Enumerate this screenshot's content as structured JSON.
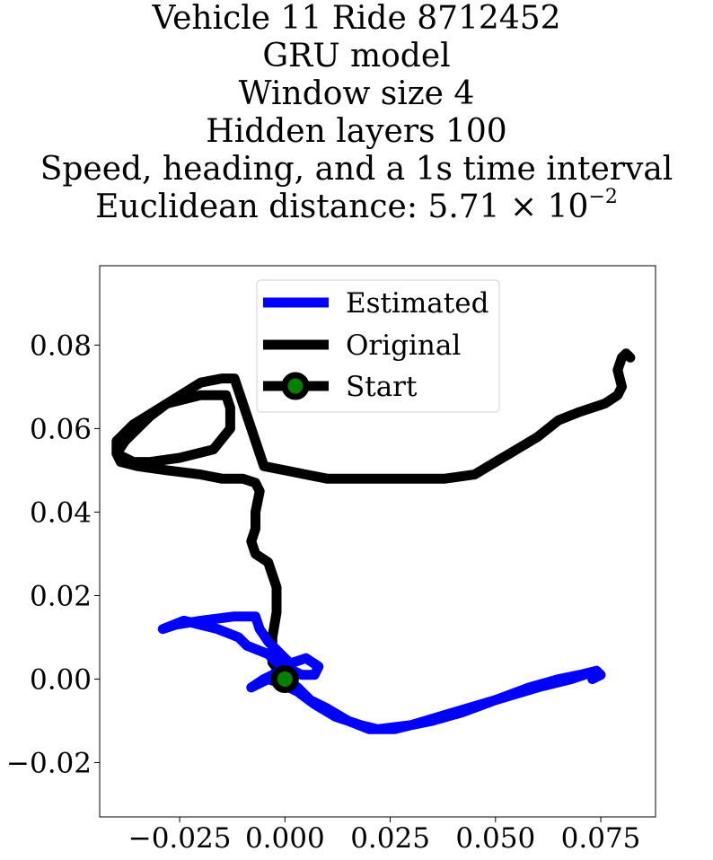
{
  "title": {
    "line1": "Vehicle 11 Ride 8712452",
    "line2": "GRU model",
    "line3": "Window size 4",
    "line4": "Hidden layers 100",
    "line5": "Speed, heading, and a 1s time interval",
    "line6_prefix": "Euclidean distance: 5.71 × 10",
    "line6_exponent": "−2"
  },
  "colors": {
    "estimated": "#0000ff",
    "original": "#000000",
    "start_marker": "#008000"
  },
  "chart_data": {
    "type": "line",
    "xlim": [
      -0.044,
      0.088
    ],
    "ylim": [
      -0.033,
      0.099
    ],
    "xticks": [
      -0.025,
      0.0,
      0.025,
      0.05,
      0.075
    ],
    "xtick_labels": [
      "−0.025",
      "0.000",
      "0.025",
      "0.050",
      "0.075"
    ],
    "yticks": [
      -0.02,
      0.0,
      0.02,
      0.04,
      0.06,
      0.08
    ],
    "ytick_labels": [
      "−0.02",
      "0.00",
      "0.02",
      "0.04",
      "0.06",
      "0.08"
    ],
    "grid": false,
    "legend_position": "top-center",
    "legend": [
      "Estimated",
      "Original",
      "Start"
    ],
    "series": [
      {
        "name": "Estimated",
        "color": "#0000ff",
        "x": [
          0.0,
          0.003,
          0.006,
          0.01,
          0.015,
          0.02,
          0.026,
          0.03,
          0.035,
          0.042,
          0.05,
          0.058,
          0.065,
          0.07,
          0.074,
          0.075,
          0.073,
          0.074,
          0.068,
          0.06,
          0.05,
          0.04,
          0.03,
          0.022,
          0.018,
          0.012,
          0.007,
          0.003,
          -0.001,
          -0.004,
          -0.008,
          -0.005,
          -0.001,
          0.002,
          0.005,
          0.008,
          0.007,
          0.004,
          0.0,
          -0.002,
          -0.004,
          -0.009,
          -0.011,
          -0.016,
          -0.02,
          -0.024,
          -0.029,
          -0.026,
          -0.02,
          -0.012,
          -0.007,
          -0.006,
          -0.004,
          -0.002,
          0.001,
          0.0
        ],
        "y": [
          0.0,
          -0.002,
          -0.005,
          -0.007,
          -0.01,
          -0.012,
          -0.012,
          -0.011,
          -0.01,
          -0.008,
          -0.005,
          -0.002,
          0.0,
          0.001,
          0.002,
          0.001,
          0.0,
          0.002,
          0.0,
          -0.002,
          -0.005,
          -0.008,
          -0.011,
          -0.012,
          -0.011,
          -0.009,
          -0.006,
          -0.003,
          -0.001,
          0.0,
          -0.002,
          0.0,
          0.002,
          0.004,
          0.005,
          0.003,
          0.001,
          0.001,
          0.003,
          0.004,
          0.006,
          0.008,
          0.01,
          0.012,
          0.013,
          0.014,
          0.012,
          0.013,
          0.014,
          0.015,
          0.015,
          0.012,
          0.009,
          0.007,
          0.004,
          0.001
        ]
      },
      {
        "name": "Original",
        "color": "#000000",
        "x": [
          0.0,
          -0.003,
          -0.003,
          -0.002,
          -0.002,
          -0.003,
          -0.004,
          -0.007,
          -0.008,
          -0.007,
          -0.007,
          -0.006,
          -0.007,
          -0.01,
          -0.015,
          -0.02,
          -0.028,
          -0.035,
          -0.039,
          -0.04,
          -0.038,
          -0.035,
          -0.032,
          -0.028,
          -0.02,
          -0.014,
          -0.013,
          -0.013,
          -0.017,
          -0.025,
          -0.032,
          -0.036,
          -0.04,
          -0.04,
          -0.036,
          -0.028,
          -0.02,
          -0.015,
          -0.012,
          -0.005,
          0.0,
          0.005,
          0.01,
          0.02,
          0.03,
          0.038,
          0.045,
          0.05,
          0.055,
          0.06,
          0.065,
          0.07,
          0.076,
          0.079,
          0.08,
          0.079,
          0.08,
          0.081,
          0.082
        ],
        "y": [
          0.0,
          0.004,
          0.01,
          0.016,
          0.022,
          0.025,
          0.028,
          0.03,
          0.033,
          0.036,
          0.04,
          0.045,
          0.047,
          0.048,
          0.048,
          0.049,
          0.05,
          0.051,
          0.052,
          0.054,
          0.057,
          0.06,
          0.063,
          0.066,
          0.068,
          0.068,
          0.065,
          0.06,
          0.055,
          0.053,
          0.052,
          0.052,
          0.054,
          0.057,
          0.061,
          0.066,
          0.071,
          0.072,
          0.072,
          0.051,
          0.05,
          0.049,
          0.048,
          0.048,
          0.048,
          0.048,
          0.049,
          0.052,
          0.055,
          0.058,
          0.062,
          0.064,
          0.066,
          0.068,
          0.07,
          0.074,
          0.077,
          0.078,
          0.077
        ]
      }
    ],
    "start_point": {
      "x": 0.0,
      "y": 0.0
    }
  }
}
